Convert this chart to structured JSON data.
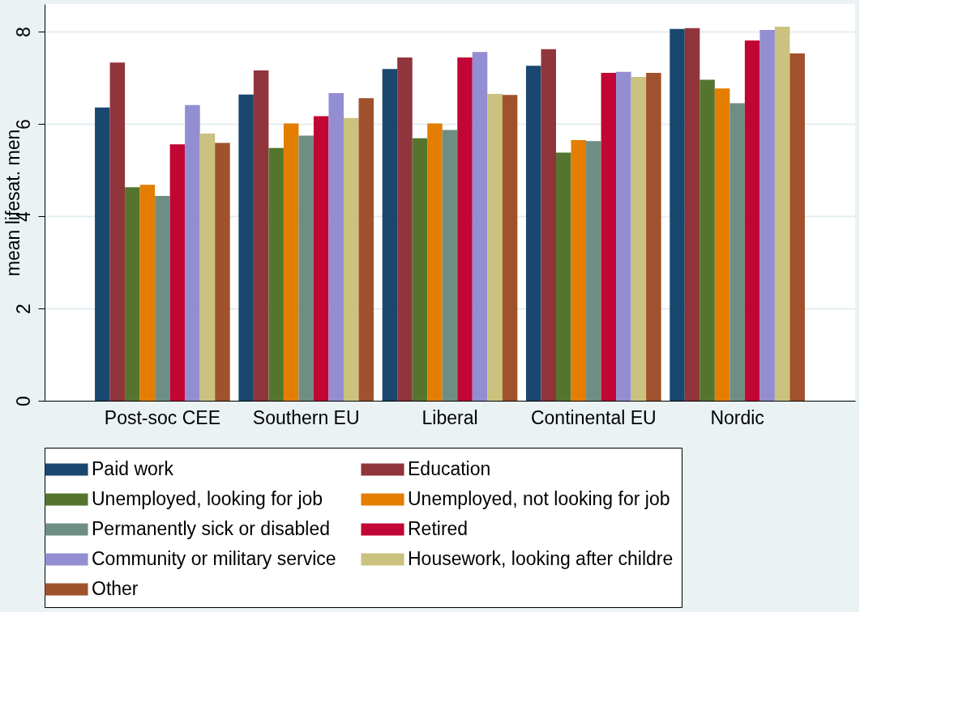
{
  "chart_data": {
    "type": "bar",
    "ylabel": "mean lifesat. men",
    "categories": [
      "Post-soc CEE",
      "Southern EU",
      "Liberal",
      "Continental EU",
      "Nordic"
    ],
    "series": [
      {
        "name": "Paid work",
        "color": "#1a476f",
        "values": [
          6.36,
          6.64,
          7.19,
          7.26,
          8.06
        ]
      },
      {
        "name": "Education",
        "color": "#90353b",
        "values": [
          7.33,
          7.16,
          7.44,
          7.62,
          8.08
        ]
      },
      {
        "name": "Unemployed, looking for job",
        "color": "#55752f",
        "values": [
          4.63,
          5.48,
          5.69,
          5.38,
          6.96
        ]
      },
      {
        "name": "Unemployed, not looking for job",
        "color": "#e37e00",
        "values": [
          4.68,
          6.01,
          6.01,
          5.65,
          6.77
        ]
      },
      {
        "name": "Permanently sick or disabled",
        "color": "#6e8e84",
        "values": [
          4.44,
          5.75,
          5.87,
          5.63,
          6.45
        ]
      },
      {
        "name": "Retired",
        "color": "#c10534",
        "values": [
          5.56,
          6.17,
          7.44,
          7.11,
          7.81
        ]
      },
      {
        "name": "Community or military service",
        "color": "#938dd2",
        "values": [
          6.41,
          6.67,
          7.56,
          7.13,
          8.04
        ]
      },
      {
        "name": "Housework, looking after childre",
        "color": "#cac27e",
        "values": [
          5.79,
          6.13,
          6.65,
          7.02,
          8.11
        ]
      },
      {
        "name": "Other",
        "color": "#a0522d",
        "values": [
          5.59,
          6.56,
          6.63,
          7.11,
          7.53
        ]
      }
    ],
    "ylim": [
      0,
      8.6
    ],
    "yticks": [
      0,
      2,
      4,
      6,
      8
    ],
    "grid": "y",
    "legend": "bottom"
  }
}
